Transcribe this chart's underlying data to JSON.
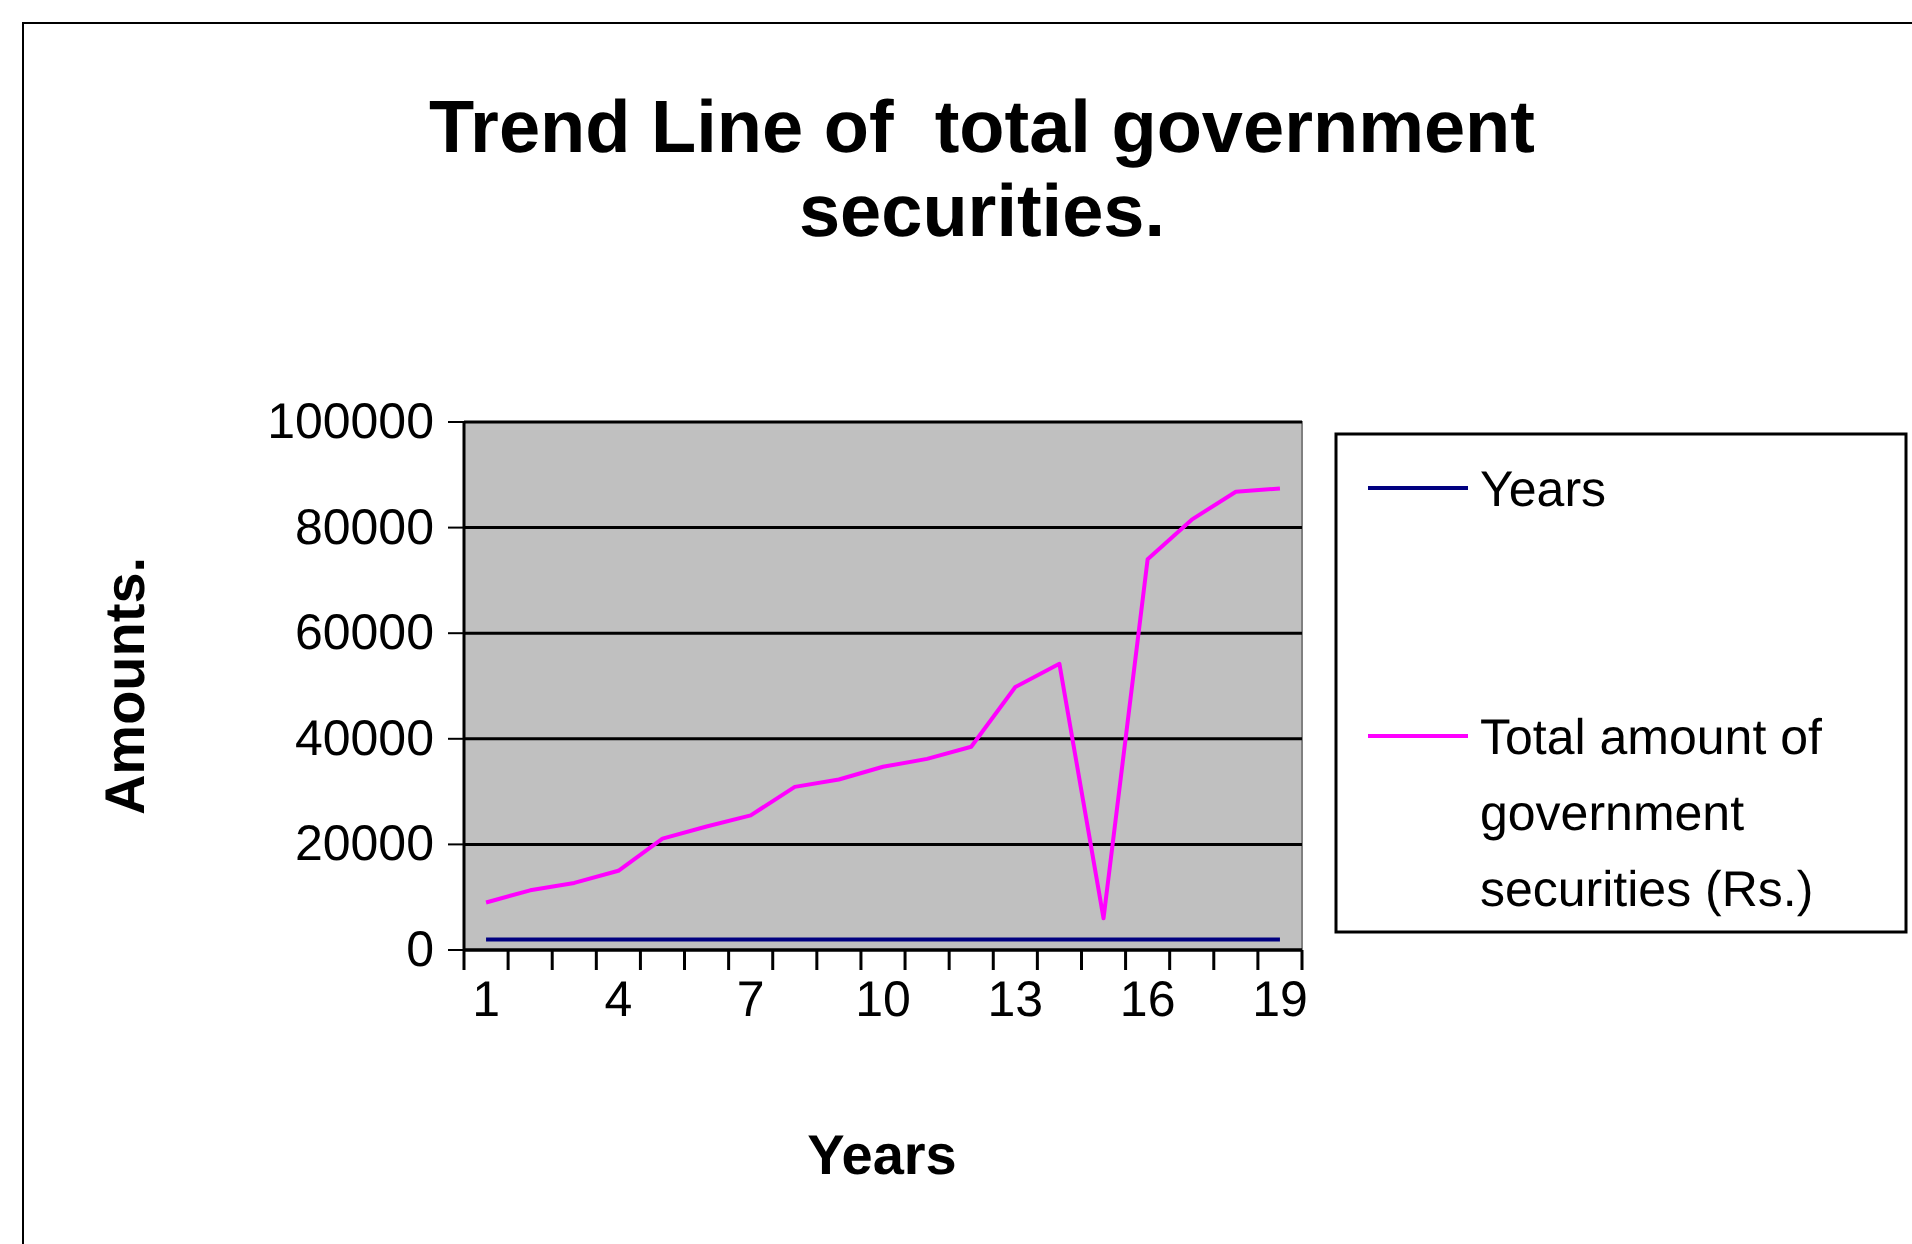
{
  "chart_data": {
    "type": "line",
    "title": "Trend Line of  total government securities.",
    "xlabel": "Years",
    "ylabel": "Amounts.",
    "categories": [
      "1",
      null,
      null,
      "4",
      null,
      null,
      "7",
      null,
      null,
      "10",
      null,
      null,
      "13",
      null,
      null,
      "16",
      null,
      null,
      "19"
    ],
    "series": [
      {
        "name": "Years",
        "color": "#000080",
        "values": [
          2000,
          2000,
          2000,
          2000,
          2000,
          2000,
          2000,
          2000,
          2000,
          2000,
          2000,
          2000,
          2000,
          2000,
          2000,
          2000,
          2000,
          2000,
          2000
        ]
      },
      {
        "name": "Total amount of government securities (Rs.)",
        "color": "#ff00ff",
        "values": [
          9000,
          11300,
          12700,
          15000,
          21100,
          23400,
          25500,
          30900,
          32300,
          34700,
          36200,
          38500,
          49800,
          54200,
          6000,
          74000,
          81500,
          86800,
          87400
        ]
      }
    ],
    "ylim": [
      0,
      100000
    ],
    "yticks": [
      0,
      20000,
      40000,
      60000,
      80000,
      100000
    ],
    "grid": "y",
    "legend": "right",
    "marker": "none",
    "line_style": "solid"
  }
}
